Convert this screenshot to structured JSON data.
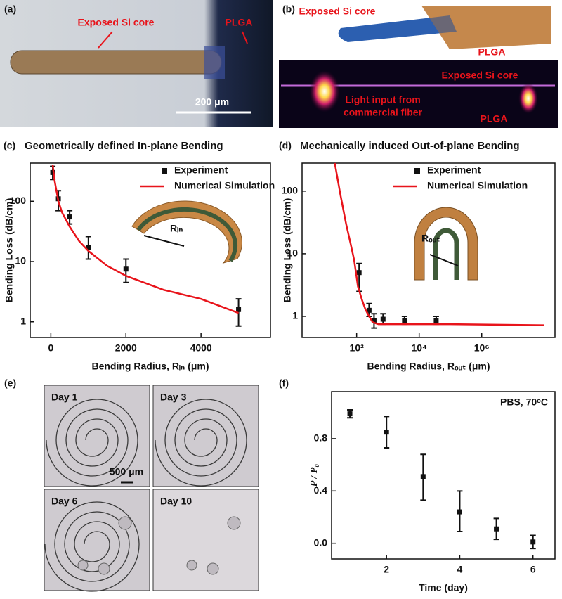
{
  "panels": {
    "a": {
      "label": "(a)",
      "core": "Exposed Si core",
      "plga": "PLGA",
      "scale_bar": "200 μm"
    },
    "b": {
      "label": "(b)",
      "core_top": "Exposed Si core",
      "plga_top": "PLGA",
      "core_bottom": "Exposed Si core",
      "light_input": [
        "Light input from",
        "commercial fiber"
      ],
      "plga_bottom": "PLGA"
    },
    "e": {
      "label": "(e)",
      "days": [
        "Day 1",
        "Day 3",
        "Day 6",
        "Day 10"
      ],
      "scale_bar": "500 μm"
    }
  },
  "chart_data": [
    {
      "type": "line",
      "panel_label": "(c)",
      "title": "Geometrically defined In-plane Bending",
      "xlabel": "Bending Radius, Rᵢₙ (μm)",
      "ylabel": "Bending Loss (dB/cm)",
      "inset_label": "Rᵢₙ",
      "xscale": "linear",
      "yscale": "log",
      "xlim": [
        -550,
        5850
      ],
      "ylim": [
        0.55,
        430
      ],
      "xticks": [
        0,
        2000,
        4000
      ],
      "yticks": [
        1,
        10,
        100
      ],
      "legend": "upper right",
      "series": [
        {
          "name": "Experiment",
          "type": "errorbar",
          "color": "#111111",
          "x": [
            50,
            200,
            500,
            1000,
            2000,
            5000
          ],
          "values": [
            300,
            110,
            55,
            17,
            7.5,
            1.6
          ],
          "lower": [
            230,
            70,
            42,
            11,
            4.5,
            0.85
          ],
          "upper": [
            380,
            150,
            70,
            26,
            11,
            2.4
          ]
        },
        {
          "name": "Numerical Simulation",
          "type": "line",
          "color": "#e8141b",
          "x": [
            50,
            100,
            200,
            300,
            500,
            750,
            1000,
            1500,
            2000,
            3000,
            4000,
            5000
          ],
          "values": [
            400,
            220,
            100,
            65,
            38,
            22,
            15,
            8.5,
            5.8,
            3.4,
            2.4,
            1.4
          ]
        }
      ]
    },
    {
      "type": "line",
      "panel_label": "(d)",
      "title": "Mechanically induced Out-of-plane Bending",
      "xlabel": "Bending Radius, Rₒᵤₜ (μm)",
      "ylabel": "Bending Loss (dB/cm)",
      "inset_label": "Rₒᵤₜ",
      "xscale": "log",
      "yscale": "log",
      "xlim": [
        1.8,
        220000000
      ],
      "ylim": [
        0.46,
        280
      ],
      "xticks": [
        {
          "value": 100,
          "label": "10²"
        },
        {
          "value": 10000,
          "label": "10⁴"
        },
        {
          "value": 1000000,
          "label": "10⁶"
        }
      ],
      "yticks": [
        1,
        10,
        100
      ],
      "legend": "upper right",
      "series": [
        {
          "name": "Experiment",
          "type": "errorbar",
          "color": "#111111",
          "x": [
            120,
            250,
            360,
            700,
            3400,
            35000
          ],
          "values": [
            5,
            1.25,
            0.85,
            0.9,
            0.85,
            0.85
          ],
          "lower": [
            2.5,
            1.0,
            0.65,
            0.75,
            0.75,
            0.75
          ],
          "upper": [
            7,
            1.6,
            1.1,
            1.1,
            1.0,
            1.0
          ]
        },
        {
          "name": "Numerical Simulation",
          "type": "line",
          "color": "#e8141b",
          "x": [
            20,
            30,
            46,
            65,
            83,
            110,
            150,
            190,
            250,
            330,
            500,
            1000,
            10000,
            100000,
            1000000,
            10000000,
            100000000
          ],
          "values": [
            280,
            90,
            30,
            14,
            8,
            3,
            1.8,
            1.3,
            1.0,
            0.8,
            0.75,
            0.75,
            0.75,
            0.75,
            0.74,
            0.73,
            0.72
          ]
        }
      ]
    },
    {
      "type": "errorbar",
      "panel_label": "(f)",
      "annotation": "PBS, 70ᵒC",
      "xlabel": "Time (day)",
      "ylabel": "P / P₀",
      "xscale": "linear",
      "yscale": "linear",
      "xlim": [
        0.5,
        6.6
      ],
      "ylim": [
        -0.12,
        1.16
      ],
      "xticks": [
        2,
        4,
        6
      ],
      "yticks": [
        {
          "value": 0,
          "label": "0.0"
        },
        0.4,
        0.8
      ],
      "series": [
        {
          "type": "errorbar",
          "color": "#111111",
          "x": [
            1,
            2,
            3,
            4,
            5,
            6
          ],
          "values": [
            0.99,
            0.85,
            0.51,
            0.24,
            0.11,
            0.01
          ],
          "lower": [
            0.96,
            0.73,
            0.33,
            0.09,
            0.03,
            -0.04
          ],
          "upper": [
            1.02,
            0.97,
            0.68,
            0.4,
            0.19,
            0.06
          ]
        }
      ]
    }
  ]
}
